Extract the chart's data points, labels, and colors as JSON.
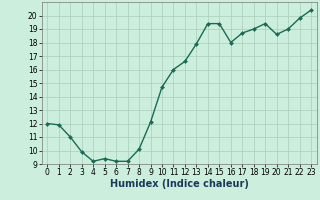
{
  "x": [
    0,
    1,
    2,
    3,
    4,
    5,
    6,
    7,
    8,
    9,
    10,
    11,
    12,
    13,
    14,
    15,
    16,
    17,
    18,
    19,
    20,
    21,
    22,
    23
  ],
  "y": [
    12.0,
    11.9,
    11.0,
    9.9,
    9.2,
    9.4,
    9.2,
    9.2,
    10.1,
    12.1,
    14.7,
    16.0,
    16.6,
    17.9,
    19.4,
    19.4,
    18.0,
    18.7,
    19.0,
    19.4,
    18.6,
    19.0,
    19.8,
    20.4
  ],
  "xlabel": "Humidex (Indice chaleur)",
  "ylim": [
    9,
    21
  ],
  "xlim": [
    -0.5,
    23.5
  ],
  "yticks": [
    9,
    10,
    11,
    12,
    13,
    14,
    15,
    16,
    17,
    18,
    19,
    20
  ],
  "xticks": [
    0,
    1,
    2,
    3,
    4,
    5,
    6,
    7,
    8,
    9,
    10,
    11,
    12,
    13,
    14,
    15,
    16,
    17,
    18,
    19,
    20,
    21,
    22,
    23
  ],
  "line_color": "#1a6b55",
  "marker_color": "#1a6b55",
  "bg_color": "#cceedd",
  "grid_color": "#aaccbb",
  "xlabel_fontsize": 7,
  "tick_fontsize": 5.5,
  "marker_size": 2,
  "line_width": 1.0
}
